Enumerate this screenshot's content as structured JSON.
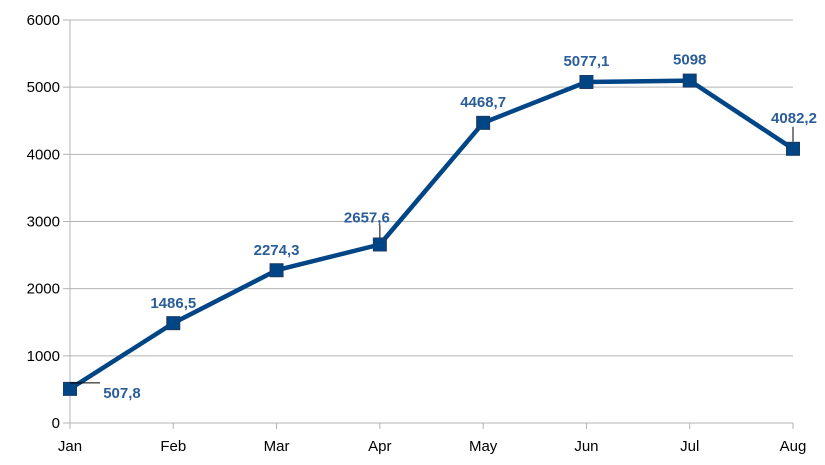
{
  "chart_data": {
    "type": "line",
    "title": "",
    "xlabel": "",
    "ylabel": "",
    "categories": [
      "Jan",
      "Feb",
      "Mar",
      "Apr",
      "May",
      "Jun",
      "Jul",
      "Aug"
    ],
    "series": [
      {
        "values": [
          507.8,
          1486.5,
          2274.3,
          2657.6,
          4468.7,
          5077.1,
          5098,
          4082.2
        ],
        "data_labels": [
          "507,8",
          "1486,5",
          "2274,3",
          "2657,6",
          "4468,7",
          "5077,1",
          "5098",
          "4082,2"
        ],
        "marker": "square"
      }
    ],
    "ylim": [
      0,
      6000
    ],
    "yticks": [
      0,
      1000,
      2000,
      3000,
      4000,
      5000,
      6000
    ],
    "ytick_labels": [
      "0",
      "1000",
      "2000",
      "3000",
      "4000",
      "5000",
      "6000"
    ],
    "grid": true,
    "legend": "none",
    "colors": {
      "line": "#004586",
      "data_label": "#2b5d9a",
      "grid": "#b3b3b3",
      "axis": "#b3b3b3"
    }
  }
}
